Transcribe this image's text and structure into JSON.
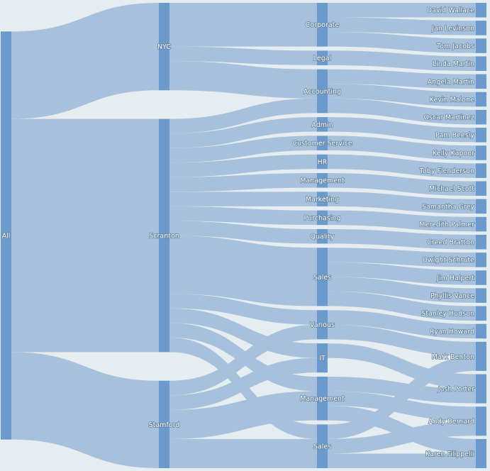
{
  "chart_data": {
    "type": "sankey",
    "levels": [
      [
        {
          "id": "all",
          "label": "All"
        }
      ],
      [
        {
          "id": "nyc",
          "label": "NYC"
        },
        {
          "id": "scranton",
          "label": "Scranton"
        },
        {
          "id": "stamford",
          "label": "Stamford"
        }
      ],
      [
        {
          "id": "corporate",
          "label": "Corporate"
        },
        {
          "id": "legal",
          "label": "Legal"
        },
        {
          "id": "accounting",
          "label": "Accounting"
        },
        {
          "id": "admin",
          "label": "Admin"
        },
        {
          "id": "customer_service",
          "label": "Customer Service"
        },
        {
          "id": "hr",
          "label": "HR"
        },
        {
          "id": "management",
          "label": "Management"
        },
        {
          "id": "marketing",
          "label": "Marketing"
        },
        {
          "id": "purchasing",
          "label": "Purchasing"
        },
        {
          "id": "quality",
          "label": "Quality"
        },
        {
          "id": "sales",
          "label": "Sales"
        },
        {
          "id": "various",
          "label": "Various"
        },
        {
          "id": "it",
          "label": "IT"
        },
        {
          "id": "management_stamford",
          "label": "Management"
        },
        {
          "id": "sales_stamford",
          "label": "Sales"
        }
      ],
      [
        {
          "id": "david_wallace",
          "label": "David Wallace"
        },
        {
          "id": "jan_levinson",
          "label": "Jan Levinson"
        },
        {
          "id": "tom_jacobs",
          "label": "Tom Jacobs"
        },
        {
          "id": "linda_martin",
          "label": "Linda Martin"
        },
        {
          "id": "angela_martin",
          "label": "Angela Martin"
        },
        {
          "id": "kevin_malone",
          "label": "Kevin Malone"
        },
        {
          "id": "oscar_martinez",
          "label": "Oscar Martinez"
        },
        {
          "id": "pam_beesly",
          "label": "Pam Beesly"
        },
        {
          "id": "kelly_kapoor",
          "label": "Kelly Kapoor"
        },
        {
          "id": "toby_flenderson",
          "label": "Toby Flenderson"
        },
        {
          "id": "michael_scott",
          "label": "Michael Scott"
        },
        {
          "id": "samantha_grey",
          "label": "Samantha Grey"
        },
        {
          "id": "meredith_palmer",
          "label": "Meredith Palmer"
        },
        {
          "id": "creed_bratton",
          "label": "Creed Bratton"
        },
        {
          "id": "dwight_schrute",
          "label": "Dwight Schrute"
        },
        {
          "id": "jim_halpert",
          "label": "Jim Halpert"
        },
        {
          "id": "phyllis_vance",
          "label": "Phyllis Vance"
        },
        {
          "id": "stanley_hudson",
          "label": "Stanley Hudson"
        },
        {
          "id": "ryan_howard",
          "label": "Ryan Howard"
        },
        {
          "id": "mark_benton",
          "label": "Mark Benton"
        },
        {
          "id": "josh_porter",
          "label": "Josh Porter"
        },
        {
          "id": "andy_bernard",
          "label": "Andy Bernard"
        },
        {
          "id": "karen_filippelli",
          "label": "Karen Filippelli"
        }
      ]
    ],
    "links": [
      {
        "source": "all",
        "target": "nyc",
        "value": 6
      },
      {
        "source": "all",
        "target": "scranton",
        "value": 16
      },
      {
        "source": "all",
        "target": "stamford",
        "value": 6
      },
      {
        "source": "nyc",
        "target": "corporate",
        "value": 3
      },
      {
        "source": "nyc",
        "target": "legal",
        "value": 1
      },
      {
        "source": "nyc",
        "target": "accounting",
        "value": 2
      },
      {
        "source": "scranton",
        "target": "accounting",
        "value": 1
      },
      {
        "source": "scranton",
        "target": "admin",
        "value": 1
      },
      {
        "source": "scranton",
        "target": "customer_service",
        "value": 1
      },
      {
        "source": "scranton",
        "target": "hr",
        "value": 1
      },
      {
        "source": "scranton",
        "target": "management",
        "value": 1
      },
      {
        "source": "scranton",
        "target": "marketing",
        "value": 1
      },
      {
        "source": "scranton",
        "target": "purchasing",
        "value": 1
      },
      {
        "source": "scranton",
        "target": "quality",
        "value": 1
      },
      {
        "source": "scranton",
        "target": "sales",
        "value": 4
      },
      {
        "source": "scranton",
        "target": "various",
        "value": 1
      },
      {
        "source": "scranton",
        "target": "it",
        "value": 1
      },
      {
        "source": "scranton",
        "target": "management_stamford",
        "value": 1
      },
      {
        "source": "scranton",
        "target": "sales_stamford",
        "value": 1
      },
      {
        "source": "stamford",
        "target": "various",
        "value": 1
      },
      {
        "source": "stamford",
        "target": "it",
        "value": 1
      },
      {
        "source": "stamford",
        "target": "management_stamford",
        "value": 2
      },
      {
        "source": "stamford",
        "target": "sales_stamford",
        "value": 2
      },
      {
        "source": "corporate",
        "target": "david_wallace",
        "value": 1
      },
      {
        "source": "corporate",
        "target": "jan_levinson",
        "value": 1
      },
      {
        "source": "corporate",
        "target": "tom_jacobs",
        "value": 1
      },
      {
        "source": "legal",
        "target": "linda_martin",
        "value": 1
      },
      {
        "source": "accounting",
        "target": "angela_martin",
        "value": 1
      },
      {
        "source": "accounting",
        "target": "kevin_malone",
        "value": 1
      },
      {
        "source": "accounting",
        "target": "oscar_martinez",
        "value": 1
      },
      {
        "source": "admin",
        "target": "pam_beesly",
        "value": 1
      },
      {
        "source": "customer_service",
        "target": "kelly_kapoor",
        "value": 1
      },
      {
        "source": "hr",
        "target": "toby_flenderson",
        "value": 1
      },
      {
        "source": "management",
        "target": "michael_scott",
        "value": 1
      },
      {
        "source": "marketing",
        "target": "samantha_grey",
        "value": 1
      },
      {
        "source": "purchasing",
        "target": "meredith_palmer",
        "value": 1
      },
      {
        "source": "quality",
        "target": "creed_bratton",
        "value": 1
      },
      {
        "source": "sales",
        "target": "dwight_schrute",
        "value": 1
      },
      {
        "source": "sales",
        "target": "jim_halpert",
        "value": 1
      },
      {
        "source": "sales",
        "target": "phyllis_vance",
        "value": 1
      },
      {
        "source": "sales",
        "target": "stanley_hudson",
        "value": 1
      },
      {
        "source": "various",
        "target": "ryan_howard",
        "value": 1
      },
      {
        "source": "various",
        "target": "mark_benton",
        "value": 1
      },
      {
        "source": "it",
        "target": "josh_porter",
        "value": 1
      },
      {
        "source": "management_stamford",
        "target": "andy_bernard",
        "value": 1
      },
      {
        "source": "management_stamford",
        "target": "karen_filippelli",
        "value": 1
      },
      {
        "source": "management_stamford",
        "target": "josh_porter",
        "value": 1
      },
      {
        "source": "sales_stamford",
        "target": "andy_bernard",
        "value": 1
      },
      {
        "source": "sales_stamford",
        "target": "karen_filippelli",
        "value": 1
      },
      {
        "source": "sales_stamford",
        "target": "mark_benton",
        "value": 1
      }
    ],
    "colors": {
      "node": "#6b9bcc",
      "link": "#a7c1dc",
      "background": "#e6edf0"
    }
  }
}
